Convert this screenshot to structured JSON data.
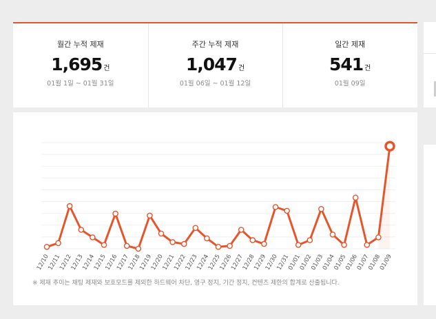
{
  "stats": [
    {
      "label": "월간 누적 제재",
      "value": "1,695",
      "unit": "건",
      "range": "01월 1일 ~ 01월 31일"
    },
    {
      "label": "주간 누적 제재",
      "value": "1,047",
      "unit": "건",
      "range": "01월 06일 ~ 01월 12일"
    },
    {
      "label": "일간 제재",
      "value": "541",
      "unit": "건",
      "range": "01월 09일"
    }
  ],
  "note": "※ 제재 추이는 채팅 제재와 보호모드를 제외한 하드웨어 차단, 영구 정지, 기간 정지, 컨텐츠 제한의 합계로 산출됩니다.",
  "colors": {
    "accent": "#e8542a",
    "grid": "#efefef",
    "tick_text": "#555555"
  },
  "chart_data": {
    "type": "line",
    "title": "",
    "xlabel": "",
    "ylabel": "",
    "ylim": [
      0,
      560
    ],
    "grid": true,
    "legend": "none",
    "x": [
      "12/10",
      "12/11",
      "12/12",
      "12/13",
      "12/14",
      "12/15",
      "12/16",
      "12/17",
      "12/18",
      "12/19",
      "12/20",
      "12/21",
      "12/22",
      "12/23",
      "12/24",
      "12/25",
      "12/26",
      "12/27",
      "12/28",
      "12/29",
      "12/30",
      "12/31",
      "01/01",
      "01/02",
      "01/03",
      "01/04",
      "01/05",
      "01/06",
      "01/07",
      "01/08",
      "01/09"
    ],
    "series": [
      {
        "values": [
          10,
          30,
          225,
          100,
          60,
          20,
          185,
          15,
          0,
          175,
          80,
          35,
          25,
          110,
          55,
          10,
          15,
          100,
          45,
          25,
          220,
          200,
          20,
          45,
          210,
          75,
          20,
          270,
          20,
          60,
          541
        ],
        "highlight_index": 30
      }
    ]
  }
}
